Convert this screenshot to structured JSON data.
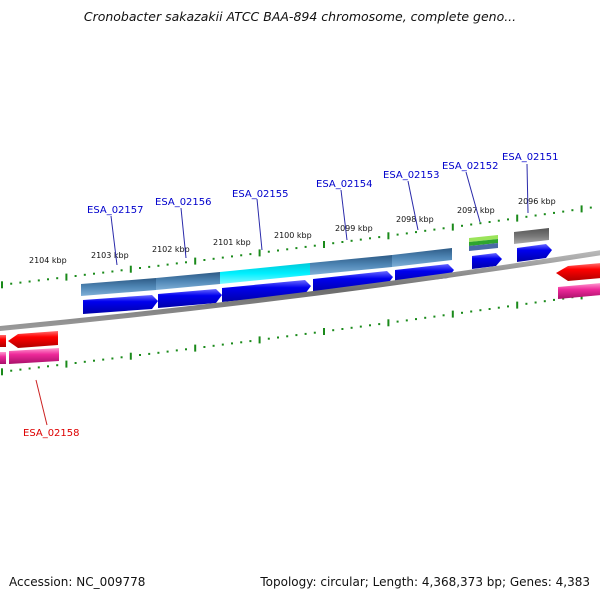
{
  "title": "Cronobacter sakazakii ATCC BAA-894 chromosome, complete geno...",
  "footer": {
    "accession": "Accession: NC_009778",
    "topology": "Topology: circular; Length: 4,368,373 bp; Genes: 4,383"
  },
  "colors": {
    "forward_gene": "#0000ee",
    "reverse_gene": "#ff0000",
    "reverse_rna": "#ee2a9a",
    "highlight_gene": "#00e5f0",
    "gene_label": "#0000cc",
    "reverse_label": "#dd0000",
    "tick": "#1a8a1a",
    "backbone": "#7a7a7a"
  },
  "scale_ticks": [
    "2104 kbp",
    "2103 kbp",
    "2102 kbp",
    "2101 kbp",
    "2100 kbp",
    "2099 kbp",
    "2098 kbp",
    "2097 kbp",
    "2096 kbp"
  ],
  "gene_labels": [
    {
      "name": "ESA_02157",
      "strand": "forward"
    },
    {
      "name": "ESA_02156",
      "strand": "forward"
    },
    {
      "name": "ESA_02155",
      "strand": "forward"
    },
    {
      "name": "ESA_02154",
      "strand": "forward"
    },
    {
      "name": "ESA_02153",
      "strand": "forward"
    },
    {
      "name": "ESA_02152",
      "strand": "forward"
    },
    {
      "name": "ESA_02151",
      "strand": "forward"
    },
    {
      "name": "ESA_02158",
      "strand": "reverse"
    }
  ]
}
